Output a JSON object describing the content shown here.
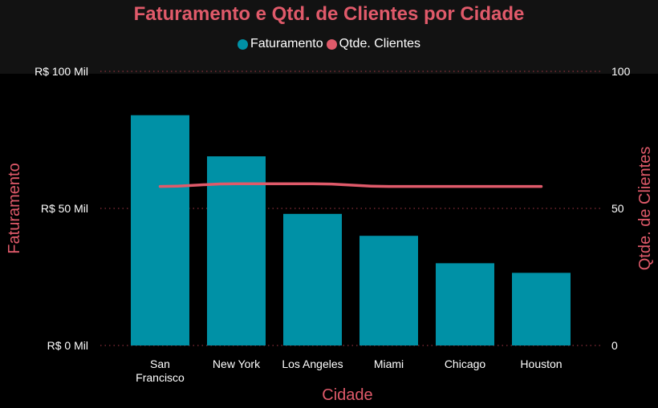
{
  "chart_data": {
    "type": "bar",
    "title": "Faturamento e Qtd. de Clientes por Cidade",
    "categories": [
      "San Francisco",
      "New York",
      "Los Angeles",
      "Miami",
      "Chicago",
      "Houston"
    ],
    "category_lines": [
      [
        "San",
        "Francisco"
      ],
      [
        "New York"
      ],
      [
        "Los Angeles"
      ],
      [
        "Miami"
      ],
      [
        "Chicago"
      ],
      [
        "Houston"
      ]
    ],
    "series": [
      {
        "name": "Faturamento",
        "type": "bar",
        "axis": "left",
        "color": "#0091a6",
        "values": [
          84,
          69,
          48,
          40,
          30,
          26.5
        ]
      },
      {
        "name": "Qtde. Clientes",
        "type": "line",
        "axis": "right",
        "color": "#e05a6a",
        "values": [
          58,
          59,
          59,
          58,
          58,
          58
        ]
      }
    ],
    "xlabel": "Cidade",
    "ylabel_left": "Faturamento",
    "ylabel_right": "Qtde. de Clientes",
    "ylim_left": [
      0,
      100
    ],
    "ylim_right": [
      0,
      100
    ],
    "left_ticks": [
      {
        "value": 0,
        "label": "R$ 0 Mil"
      },
      {
        "value": 50,
        "label": "R$ 50 Mil"
      },
      {
        "value": 100,
        "label": "R$ 100 Mil"
      }
    ],
    "right_ticks": [
      {
        "value": 0,
        "label": "0"
      },
      {
        "value": 50,
        "label": "50"
      },
      {
        "value": 100,
        "label": "100"
      }
    ],
    "grid": true,
    "legend_position": "top-center"
  },
  "colors": {
    "background": "#000000",
    "header_band": "#121212",
    "accent": "#e05a6a",
    "bar": "#0091a6",
    "text": "#ffffff",
    "gridline": "#8a2f3a"
  }
}
